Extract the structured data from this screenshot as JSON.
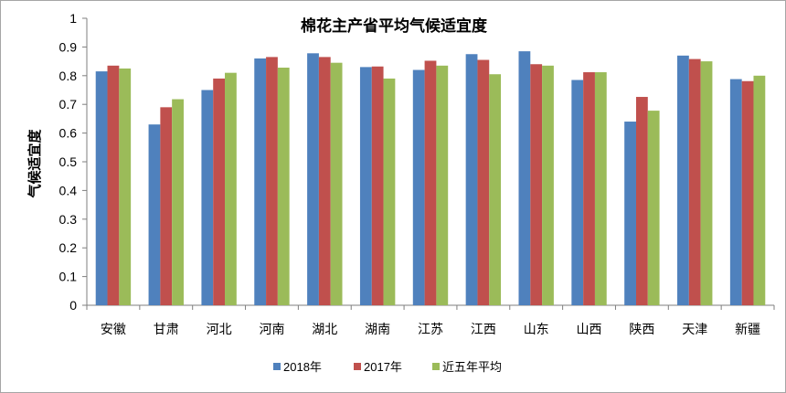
{
  "chart_data": {
    "type": "bar",
    "title": "棉花主产省平均气候适宜度",
    "xlabel": "",
    "ylabel": "气候适宜度",
    "ylim": [
      0,
      1
    ],
    "yticks": [
      "0",
      "0.1",
      "0.2",
      "0.3",
      "0.4",
      "0.5",
      "0.6",
      "0.7",
      "0.8",
      "0.9",
      "1"
    ],
    "grid": false,
    "legend_position": "bottom",
    "categories": [
      "安徽",
      "甘肃",
      "河北",
      "河南",
      "湖北",
      "湖南",
      "江苏",
      "江西",
      "山东",
      "山西",
      "陕西",
      "天津",
      "新疆"
    ],
    "series": [
      {
        "name": "2018年",
        "color": "#4f81bd",
        "values": [
          0.815,
          0.63,
          0.75,
          0.86,
          0.878,
          0.83,
          0.82,
          0.875,
          0.885,
          0.785,
          0.64,
          0.87,
          0.788
        ]
      },
      {
        "name": "2017年",
        "color": "#c0504d",
        "values": [
          0.835,
          0.69,
          0.79,
          0.865,
          0.865,
          0.832,
          0.852,
          0.855,
          0.84,
          0.812,
          0.726,
          0.858,
          0.781
        ]
      },
      {
        "name": "近五年平均",
        "color": "#9bbb59",
        "values": [
          0.825,
          0.718,
          0.81,
          0.828,
          0.845,
          0.79,
          0.835,
          0.805,
          0.835,
          0.812,
          0.678,
          0.85,
          0.8
        ]
      }
    ]
  }
}
